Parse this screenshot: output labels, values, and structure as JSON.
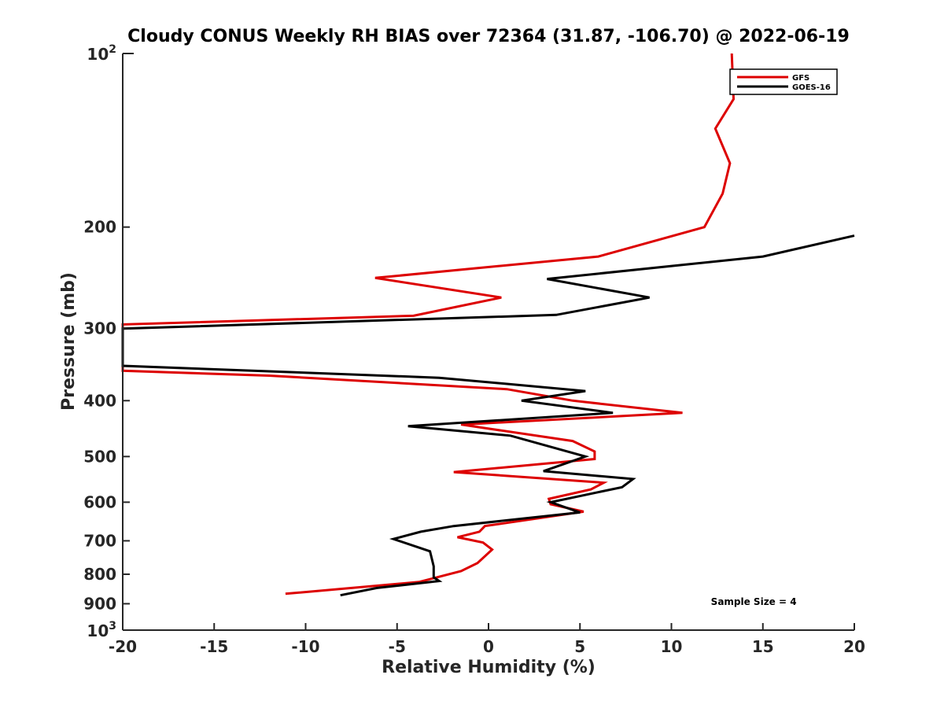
{
  "chart_data": {
    "type": "line",
    "title": "Cloudy CONUS Weekly RH BIAS over 72364 (31.87, -106.70) @ 2022-06-19",
    "xlabel": "Relative Humidity (%)",
    "ylabel": "Pressure (mb)",
    "xlim": [
      -20,
      20
    ],
    "ylim": [
      100,
      1000
    ],
    "yscale": "log",
    "y_reversed": true,
    "xticks": [
      -20,
      -15,
      -10,
      -5,
      0,
      5,
      10,
      15,
      20
    ],
    "xtick_labels": [
      "-20",
      "-15",
      "-10",
      "-5",
      "0",
      "5",
      "10",
      "15",
      "20"
    ],
    "yticks": [
      200,
      300,
      400,
      500,
      600,
      700,
      800,
      900
    ],
    "ytick_labels": [
      "200",
      "300",
      "400",
      "500",
      "600",
      "700",
      "800",
      "900"
    ],
    "ytick_major_labels": [
      {
        "base": "10",
        "exp": "2"
      },
      {
        "base": "10",
        "exp": "3"
      }
    ],
    "grid": false,
    "legend_position": "top-right",
    "series": [
      {
        "name": "GFS",
        "color": "#dd0000",
        "points": [
          [
            13.3,
            100
          ],
          [
            13.4,
            120
          ],
          [
            12.4,
            135
          ],
          [
            13.2,
            155
          ],
          [
            12.8,
            175
          ],
          [
            11.8,
            200
          ],
          [
            6.0,
            225
          ],
          [
            -6.2,
            245
          ],
          [
            0.7,
            265
          ],
          [
            -4.1,
            285
          ],
          [
            -20.0,
            295
          ],
          [
            -20.0,
            345
          ],
          [
            -20.0,
            355
          ],
          [
            -12.0,
            362
          ],
          [
            1.0,
            382
          ],
          [
            4.6,
            400
          ],
          [
            10.6,
            420
          ],
          [
            -1.5,
            440
          ],
          [
            4.6,
            470
          ],
          [
            5.8,
            490
          ],
          [
            5.8,
            505
          ],
          [
            -1.9,
            532
          ],
          [
            6.3,
            555
          ],
          [
            5.6,
            570
          ],
          [
            3.3,
            592
          ],
          [
            3.4,
            605
          ],
          [
            5.2,
            623
          ],
          [
            -0.2,
            660
          ],
          [
            -0.5,
            675
          ],
          [
            -1.7,
            690
          ],
          [
            -0.3,
            705
          ],
          [
            0.2,
            725
          ],
          [
            -0.6,
            765
          ],
          [
            -1.5,
            790
          ],
          [
            -3.8,
            825
          ],
          [
            -11.1,
            865
          ]
        ]
      },
      {
        "name": "GOES-16",
        "color": "#000000",
        "points": [
          [
            20.0,
            207
          ],
          [
            15.0,
            225
          ],
          [
            3.2,
            246
          ],
          [
            8.8,
            265
          ],
          [
            3.7,
            284
          ],
          [
            -20.0,
            300
          ],
          [
            -20.0,
            348
          ],
          [
            -2.7,
            365
          ],
          [
            5.3,
            385
          ],
          [
            1.8,
            400
          ],
          [
            6.8,
            420
          ],
          [
            -4.4,
            443
          ],
          [
            1.2,
            460
          ],
          [
            5.3,
            500
          ],
          [
            3.0,
            530
          ],
          [
            7.9,
            547
          ],
          [
            7.3,
            565
          ],
          [
            3.4,
            600
          ],
          [
            5.0,
            625
          ],
          [
            -1.9,
            660
          ],
          [
            -3.7,
            675
          ],
          [
            -5.2,
            695
          ],
          [
            -3.2,
            730
          ],
          [
            -3.0,
            775
          ],
          [
            -3.0,
            810
          ],
          [
            -2.7,
            822
          ],
          [
            -6.1,
            845
          ],
          [
            -8.1,
            870
          ]
        ]
      }
    ],
    "annotations": [
      {
        "text": "Sample Size = 4",
        "x": 14.5,
        "y": 905
      }
    ]
  }
}
